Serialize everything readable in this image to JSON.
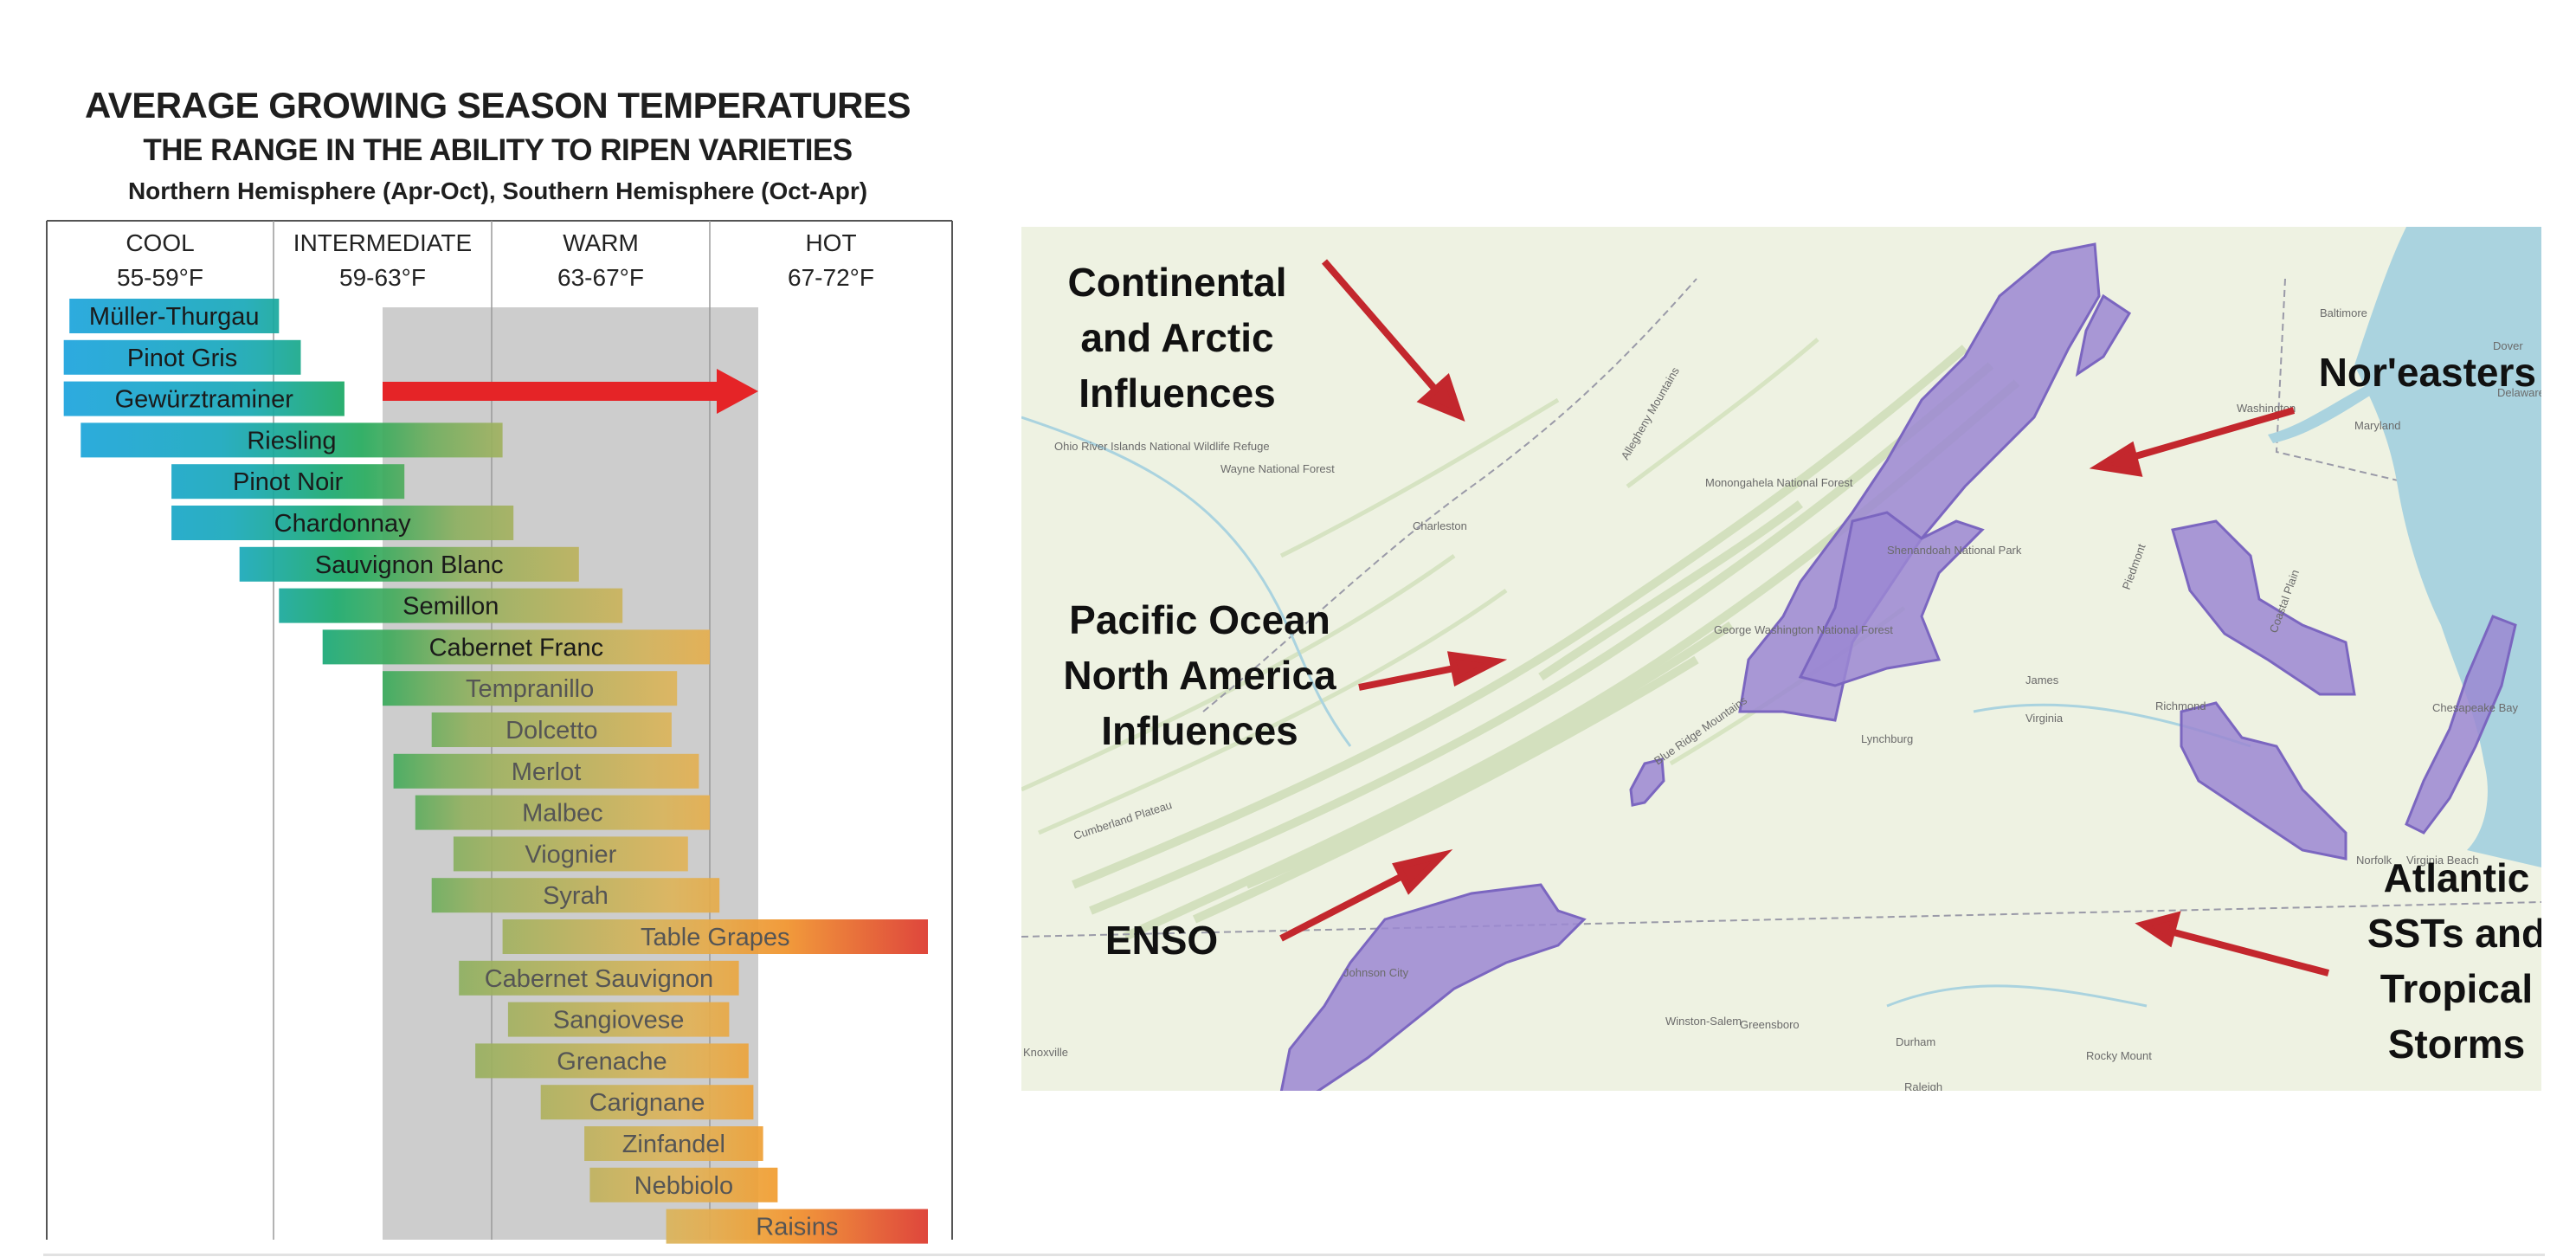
{
  "header": {
    "title": "AVERAGE GROWING SEASON TEMPERATURES",
    "subtitle": "THE RANGE IN THE ABILITY TO RIPEN VARIETIES",
    "note": "Northern Hemisphere (Apr-Oct), Southern Hemisphere (Oct-Apr)"
  },
  "chart_data": {
    "type": "bar",
    "title": "AVERAGE GROWING SEASON TEMPERATURES",
    "subtitle": "THE RANGE IN THE ABILITY TO RIPEN VARIETIES",
    "note": "Northern Hemisphere (Apr-Oct), Southern Hemisphere (Oct-Apr)",
    "xlim": [
      55,
      72
    ],
    "zones": [
      {
        "name": "COOL",
        "range": "55-59°F",
        "from": 55,
        "to": 59
      },
      {
        "name": "INTERMEDIATE",
        "range": "59-63°F",
        "from": 59,
        "to": 63
      },
      {
        "name": "WARM",
        "range": "63-67°F",
        "from": 63,
        "to": 67
      },
      {
        "name": "HOT",
        "range": "67-72°F",
        "from": 67,
        "to": 72
      }
    ],
    "shaded_band": [
      61,
      68
    ],
    "trend_arrow": {
      "from": 61,
      "to": 68,
      "color": "#e52427"
    },
    "varieties": [
      {
        "name": "Müller-Thurgau",
        "min": 55.4,
        "max": 59.1
      },
      {
        "name": "Pinot Gris",
        "min": 55.3,
        "max": 59.5
      },
      {
        "name": "Gewürztraminer",
        "min": 55.3,
        "max": 60.3
      },
      {
        "name": "Riesling",
        "min": 55.6,
        "max": 63.2
      },
      {
        "name": "Pinot Noir",
        "min": 57.2,
        "max": 61.4
      },
      {
        "name": "Chardonnay",
        "min": 57.2,
        "max": 63.4
      },
      {
        "name": "Sauvignon Blanc",
        "min": 58.4,
        "max": 64.6
      },
      {
        "name": "Semillon",
        "min": 59.1,
        "max": 65.4
      },
      {
        "name": "Cabernet Franc",
        "min": 59.9,
        "max": 67.0
      },
      {
        "name": "Tempranillo",
        "min": 61.0,
        "max": 66.4
      },
      {
        "name": "Dolcetto",
        "min": 61.9,
        "max": 66.3
      },
      {
        "name": "Merlot",
        "min": 61.2,
        "max": 66.8
      },
      {
        "name": "Malbec",
        "min": 61.6,
        "max": 67.0
      },
      {
        "name": "Viognier",
        "min": 62.3,
        "max": 66.6
      },
      {
        "name": "Syrah",
        "min": 61.9,
        "max": 67.2
      },
      {
        "name": "Table Grapes",
        "min": 63.2,
        "max": 71.5
      },
      {
        "name": "Cabernet Sauvignon",
        "min": 62.4,
        "max": 67.6
      },
      {
        "name": "Sangiovese",
        "min": 63.3,
        "max": 67.4
      },
      {
        "name": "Grenache",
        "min": 62.7,
        "max": 67.8
      },
      {
        "name": "Carignane",
        "min": 63.9,
        "max": 67.9
      },
      {
        "name": "Zinfandel",
        "min": 64.7,
        "max": 68.1
      },
      {
        "name": "Nebbiolo",
        "min": 64.8,
        "max": 68.4
      },
      {
        "name": "Raisins",
        "min": 66.2,
        "max": 71.5
      }
    ],
    "colors": {
      "cool": "#1ba3e0",
      "intermediate": "#19a85a",
      "warm": "#e0b45a",
      "hot": "#d8252b"
    }
  },
  "map": {
    "influences": [
      {
        "label": "Continental and Arctic Influences"
      },
      {
        "label": "Pacific Ocean North America Influences"
      },
      {
        "label": "ENSO"
      },
      {
        "label": "Nor'easters"
      },
      {
        "label": "Atlantic SSTs and Tropical Storms"
      }
    ],
    "place_labels": [
      "Baltimore",
      "Dover",
      "Delaware",
      "Washington",
      "Maryland",
      "Charleston",
      "Virginia",
      "Richmond",
      "Lynchburg",
      "Norfolk",
      "Virginia Beach",
      "Johnson City",
      "Knoxville",
      "Winston-Salem",
      "Greensboro",
      "Durham",
      "Raleigh",
      "Rocky Mount",
      "Allegheny Mountains",
      "Blue Ridge Mountains",
      "Cumberland Plateau",
      "Piedmont",
      "Coastal Plain",
      "Chesapeake Bay",
      "Wayne National Forest",
      "Ohio River Islands National Wildlife Refuge",
      "Monongahela National Forest",
      "George Washington National Forest",
      "Shenandoah National Park",
      "James"
    ],
    "colors": {
      "region": "#9b87d2",
      "region_stroke": "#7b66c0",
      "arrow": "#c3272d",
      "land": "#eef2e4",
      "water": "#aad3df"
    }
  }
}
